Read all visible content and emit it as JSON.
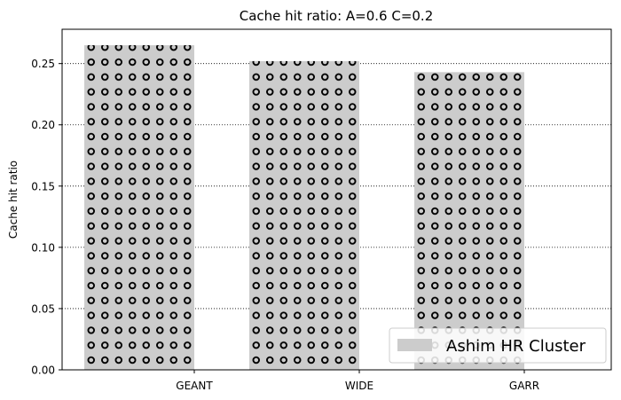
{
  "chart_data": {
    "type": "bar",
    "title": "Cache hit ratio: A=0.6 C=0.2",
    "xlabel": "",
    "ylabel": "Cache hit ratio",
    "categories": [
      "GEANT",
      "WIDE",
      "GARR"
    ],
    "series": [
      {
        "name": "Ashim HR Cluster",
        "values": [
          0.265,
          0.252,
          0.243
        ]
      }
    ],
    "ylim": [
      0,
      0.278
    ],
    "yticks": [
      0.0,
      0.05,
      0.1,
      0.15,
      0.2,
      0.25
    ],
    "ytick_labels": [
      "0.00",
      "0.05",
      "0.10",
      "0.15",
      "0.20",
      "0.25"
    ],
    "grid": "horizontal dotted",
    "legend_position": "lower right",
    "bar_color": "#cccccc",
    "bar_pattern": "circles",
    "pattern_color": "#000000"
  }
}
